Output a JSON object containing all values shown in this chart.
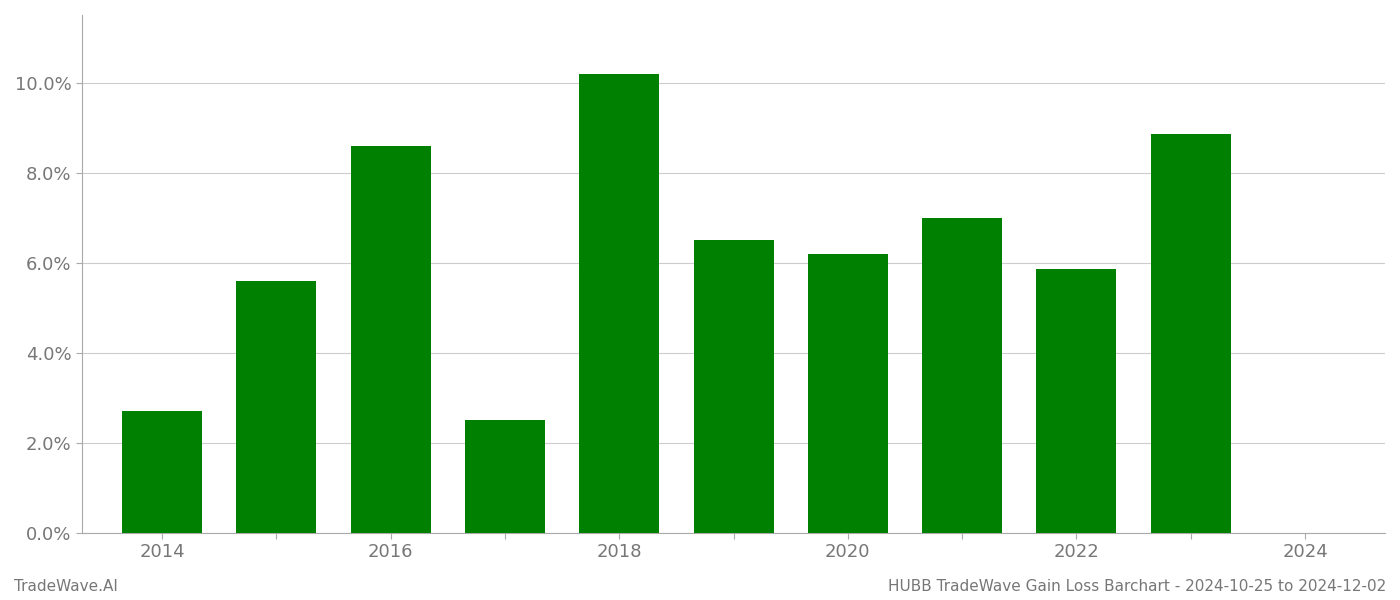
{
  "years": [
    2014,
    2015,
    2016,
    2017,
    2018,
    2019,
    2020,
    2021,
    2022,
    2023
  ],
  "values": [
    0.027,
    0.056,
    0.086,
    0.025,
    0.102,
    0.065,
    0.062,
    0.07,
    0.0585,
    0.0885
  ],
  "bar_color": "#008000",
  "background_color": "#ffffff",
  "ylim": [
    0,
    0.115
  ],
  "yticks": [
    0.0,
    0.02,
    0.04,
    0.06,
    0.08,
    0.1
  ],
  "grid_color": "#cccccc",
  "footnote_left": "TradeWave.AI",
  "footnote_right": "HUBB TradeWave Gain Loss Barchart - 2024-10-25 to 2024-12-02",
  "footnote_fontsize": 11,
  "tick_fontsize": 13,
  "bar_width": 0.7,
  "spine_color": "#aaaaaa",
  "tick_color": "#777777"
}
